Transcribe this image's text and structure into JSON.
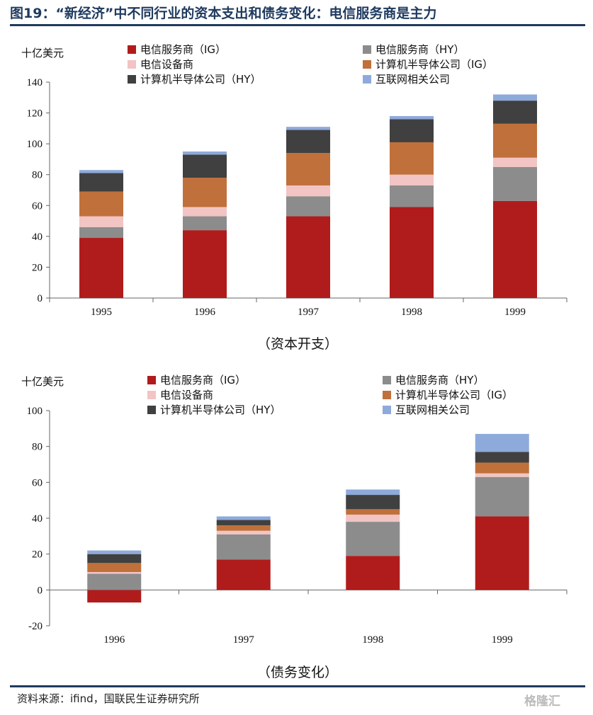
{
  "title": "图19：“新经济”中不同行业的资本支出和债务变化：电信服务商是主力",
  "source": "资料来源：ifind，国联民生证券研究所",
  "watermark": "格隆汇",
  "chart_data": [
    {
      "type": "bar",
      "stacked": true,
      "unit": "十亿美元",
      "caption": "（资本开支）",
      "categories": [
        "1995",
        "1996",
        "1997",
        "1998",
        "1999"
      ],
      "ylim": [
        0,
        140
      ],
      "yticks": [
        "0",
        "20",
        "40",
        "60",
        "80",
        "100",
        "120",
        "140"
      ],
      "series": [
        {
          "name": "电信服务商（IG）",
          "color": "#b01c1c",
          "values": [
            39,
            44,
            53,
            59,
            63
          ]
        },
        {
          "name": "电信服务商（HY）",
          "color": "#8c8c8c",
          "values": [
            7,
            9,
            13,
            14,
            22
          ]
        },
        {
          "name": "电信设备商",
          "color": "#f2c4c4",
          "values": [
            7,
            6,
            7,
            7,
            6
          ]
        },
        {
          "name": "计算机半导体公司（IG）",
          "color": "#c0703b",
          "values": [
            16,
            19,
            21,
            21,
            22
          ]
        },
        {
          "name": "计算机半导体公司（HY）",
          "color": "#404040",
          "values": [
            12,
            15,
            15,
            15,
            15
          ]
        },
        {
          "name": "互联网相关公司",
          "color": "#8eaadb",
          "values": [
            2,
            2,
            2,
            2,
            4
          ]
        }
      ]
    },
    {
      "type": "bar",
      "stacked": true,
      "unit": "十亿美元",
      "caption": "（债务变化）",
      "categories": [
        "1996",
        "1997",
        "1998",
        "1999"
      ],
      "ylim": [
        -20,
        100
      ],
      "yticks": [
        "-20",
        "0",
        "20",
        "40",
        "60",
        "80",
        "100"
      ],
      "series": [
        {
          "name": "电信服务商（IG）",
          "color": "#b01c1c",
          "values": [
            -7,
            17,
            19,
            41
          ]
        },
        {
          "name": "电信服务商（HY）",
          "color": "#8c8c8c",
          "values": [
            9,
            14,
            19,
            22
          ]
        },
        {
          "name": "电信设备商",
          "color": "#f2c4c4",
          "values": [
            1,
            2,
            4,
            2
          ]
        },
        {
          "name": "计算机半导体公司（IG）",
          "color": "#c0703b",
          "values": [
            5,
            3,
            3,
            6
          ]
        },
        {
          "name": "计算机半导体公司（HY）",
          "color": "#404040",
          "values": [
            5,
            3,
            8,
            6
          ]
        },
        {
          "name": "互联网相关公司",
          "color": "#8eaadb",
          "values": [
            2,
            2,
            3,
            10
          ]
        }
      ]
    }
  ]
}
